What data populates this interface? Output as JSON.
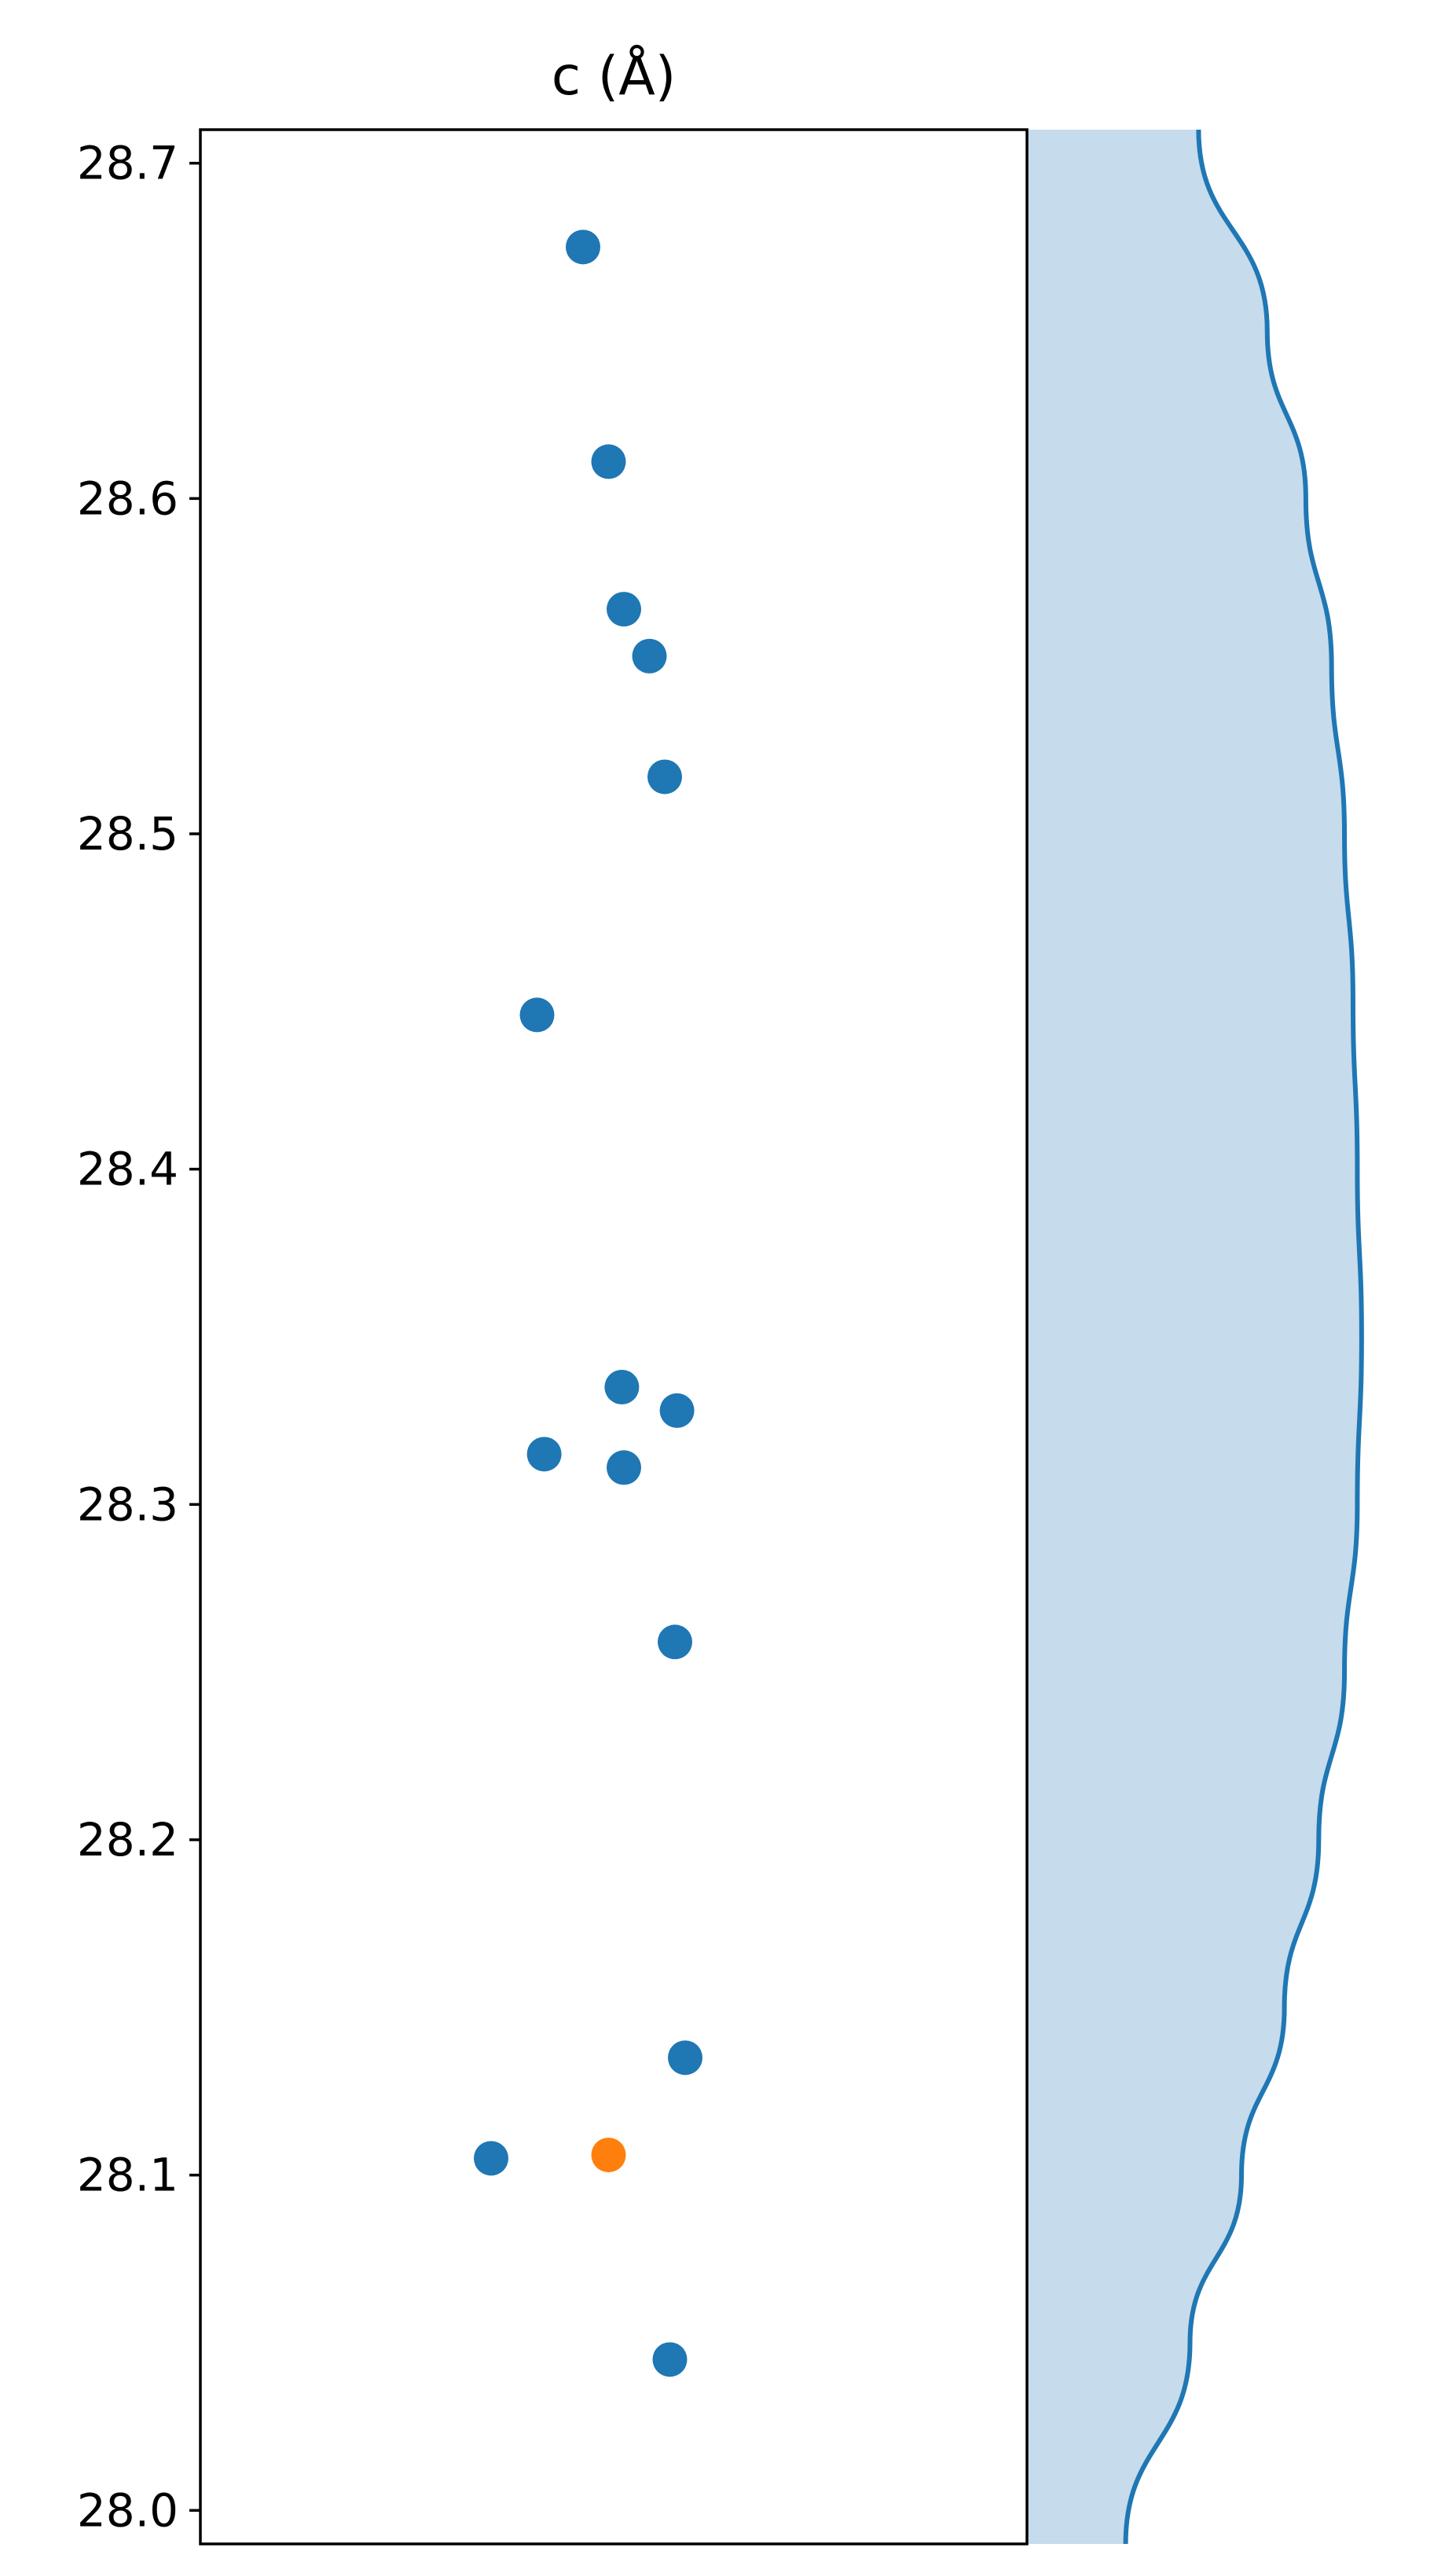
{
  "chart_data": {
    "type": "scatter",
    "title": "c (Å)",
    "xlabel": "",
    "ylabel": "",
    "ylim": [
      27.99,
      28.71
    ],
    "yticks": [
      "28.0",
      "28.1",
      "28.2",
      "28.3",
      "28.4",
      "28.5",
      "28.6",
      "28.7"
    ],
    "x_ticks_shown": false,
    "grid": false,
    "legend": "none",
    "colors": {
      "primary": "#1f77b4",
      "highlight": "#ff7f0e",
      "density_fill": "#c6dbeb",
      "density_line": "#1f77b4"
    },
    "series": [
      {
        "color": "#1f77b4",
        "points": [
          {
            "x": -0.03,
            "y": 28.675
          },
          {
            "x": -0.005,
            "y": 28.611
          },
          {
            "x": 0.01,
            "y": 28.567
          },
          {
            "x": 0.035,
            "y": 28.553
          },
          {
            "x": 0.05,
            "y": 28.517
          },
          {
            "x": -0.075,
            "y": 28.446
          },
          {
            "x": 0.008,
            "y": 28.335
          },
          {
            "x": 0.062,
            "y": 28.328
          },
          {
            "x": -0.068,
            "y": 28.315
          },
          {
            "x": 0.01,
            "y": 28.311
          },
          {
            "x": 0.06,
            "y": 28.259
          },
          {
            "x": 0.07,
            "y": 28.135
          },
          {
            "x": -0.12,
            "y": 28.105
          },
          {
            "x": 0.055,
            "y": 28.045
          }
        ]
      },
      {
        "color": "#ff7f0e",
        "points": [
          {
            "x": -0.005,
            "y": 28.106
          }
        ]
      }
    ],
    "density": {
      "y": [
        28.71,
        28.65,
        28.6,
        28.55,
        28.5,
        28.45,
        28.4,
        28.35,
        28.3,
        28.25,
        28.2,
        28.15,
        28.1,
        28.05,
        27.99
      ],
      "value": [
        0.4,
        0.56,
        0.65,
        0.71,
        0.74,
        0.76,
        0.77,
        0.78,
        0.77,
        0.74,
        0.68,
        0.6,
        0.5,
        0.38,
        0.23
      ]
    }
  }
}
